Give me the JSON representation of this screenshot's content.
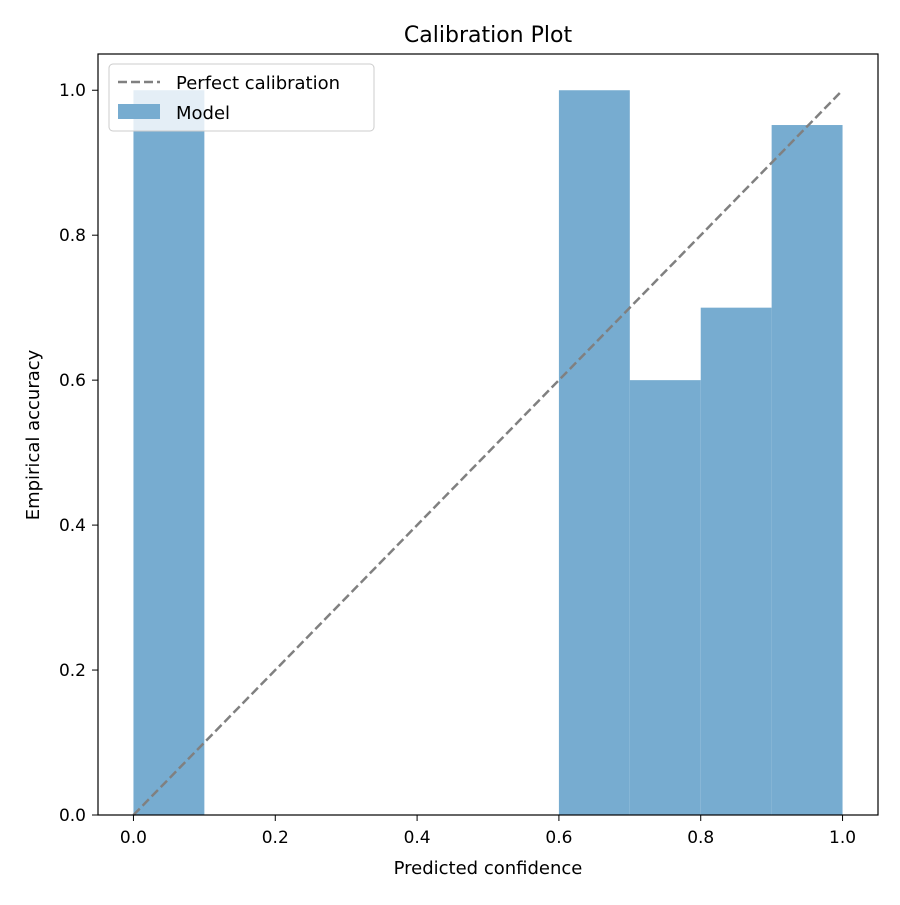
{
  "chart_data": {
    "type": "bar",
    "title": "Calibration Plot",
    "xlabel": "Predicted confidence",
    "ylabel": "Empirical accuracy",
    "xlim": [
      -0.05,
      1.05
    ],
    "ylim": [
      0,
      1.05
    ],
    "xticks": [
      "0.0",
      "0.2",
      "0.4",
      "0.6",
      "0.8",
      "1.0"
    ],
    "yticks": [
      "0.0",
      "0.2",
      "0.4",
      "0.6",
      "0.8",
      "1.0"
    ],
    "bin_width": 0.1,
    "bars": [
      {
        "left": 0.0,
        "value": 1.0
      },
      {
        "left": 0.6,
        "value": 1.0
      },
      {
        "left": 0.7,
        "value": 0.6
      },
      {
        "left": 0.8,
        "value": 0.7
      },
      {
        "left": 0.9,
        "value": 0.952
      }
    ],
    "reference_line": {
      "x": [
        0,
        1
      ],
      "y": [
        0,
        1
      ]
    },
    "legend": {
      "placement": "top-left",
      "entries": [
        "Perfect calibration",
        "Model"
      ]
    },
    "colors": {
      "bars": "#77acd0",
      "line": "#808080"
    }
  }
}
